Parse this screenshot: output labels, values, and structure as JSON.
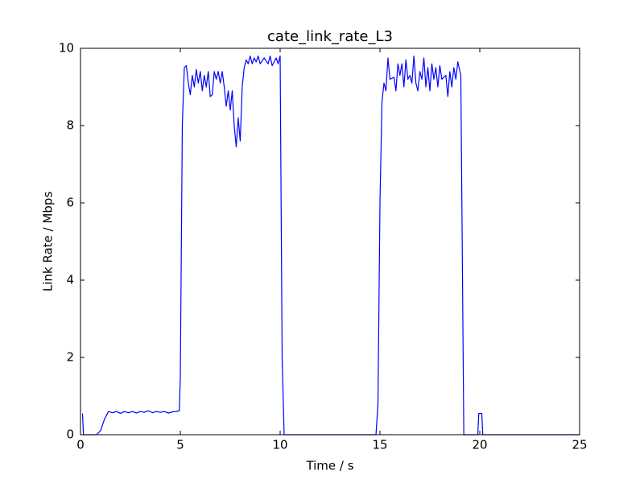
{
  "chart_data": {
    "type": "line",
    "title": "cate_link_rate_L3",
    "x_label": "Time / s",
    "y_label": "Link Rate / Mbps",
    "color": "#0000ff",
    "grid": false,
    "xlim": [
      0,
      25
    ],
    "ylim": [
      0,
      10
    ],
    "xticks": [
      0,
      5,
      10,
      15,
      20,
      25
    ],
    "yticks": [
      0,
      2,
      4,
      6,
      8,
      10
    ],
    "x": [
      0.1,
      0.15,
      0.8,
      1.0,
      1.2,
      1.4,
      1.6,
      1.8,
      2.0,
      2.2,
      2.4,
      2.6,
      2.8,
      3.0,
      3.2,
      3.4,
      3.6,
      3.8,
      4.0,
      4.2,
      4.4,
      4.6,
      4.8,
      4.95,
      5.0,
      5.1,
      5.2,
      5.3,
      5.4,
      5.5,
      5.6,
      5.7,
      5.8,
      5.9,
      6.0,
      6.1,
      6.2,
      6.3,
      6.4,
      6.5,
      6.6,
      6.7,
      6.8,
      6.9,
      7.0,
      7.1,
      7.2,
      7.3,
      7.4,
      7.5,
      7.6,
      7.7,
      7.8,
      7.9,
      8.0,
      8.1,
      8.2,
      8.3,
      8.4,
      8.5,
      8.6,
      8.7,
      8.8,
      8.9,
      9.0,
      9.2,
      9.4,
      9.5,
      9.6,
      9.8,
      9.9,
      10.0,
      10.1,
      10.2,
      14.8,
      14.9,
      15.0,
      15.1,
      15.2,
      15.3,
      15.4,
      15.5,
      15.7,
      15.8,
      15.9,
      16.0,
      16.1,
      16.2,
      16.3,
      16.4,
      16.5,
      16.6,
      16.7,
      16.8,
      16.9,
      17.0,
      17.1,
      17.2,
      17.3,
      17.4,
      17.5,
      17.6,
      17.7,
      17.8,
      17.9,
      18.0,
      18.1,
      18.3,
      18.4,
      18.5,
      18.6,
      18.7,
      18.8,
      18.9,
      19.05,
      19.2,
      19.9,
      19.95,
      20.1,
      20.15,
      25
    ],
    "values": [
      0.55,
      0,
      0,
      0.1,
      0.4,
      0.6,
      0.57,
      0.6,
      0.55,
      0.6,
      0.57,
      0.6,
      0.56,
      0.6,
      0.58,
      0.62,
      0.57,
      0.6,
      0.58,
      0.6,
      0.56,
      0.59,
      0.6,
      0.62,
      1.5,
      8.0,
      9.5,
      9.55,
      9.1,
      8.8,
      9.3,
      9.0,
      9.45,
      9.1,
      9.4,
      8.9,
      9.3,
      9.0,
      9.4,
      8.75,
      8.8,
      9.4,
      9.2,
      9.4,
      9.1,
      9.4,
      9.0,
      8.5,
      8.9,
      8.4,
      8.9,
      8.0,
      7.45,
      8.2,
      7.6,
      9.0,
      9.5,
      9.7,
      9.6,
      9.8,
      9.6,
      9.75,
      9.65,
      9.8,
      9.6,
      9.75,
      9.6,
      9.8,
      9.55,
      9.75,
      9.6,
      9.8,
      2.0,
      0,
      0,
      0.8,
      6.0,
      8.6,
      9.1,
      8.9,
      9.75,
      9.2,
      9.25,
      8.9,
      9.6,
      9.3,
      9.6,
      9.0,
      9.7,
      9.2,
      9.3,
      9.1,
      9.8,
      9.1,
      8.9,
      9.4,
      9.2,
      9.75,
      9.0,
      9.5,
      8.9,
      9.6,
      9.2,
      9.5,
      9.0,
      9.55,
      9.2,
      9.3,
      8.75,
      9.4,
      9.0,
      9.5,
      9.2,
      9.65,
      9.3,
      0,
      0,
      0.55,
      0.55,
      0,
      0
    ]
  }
}
